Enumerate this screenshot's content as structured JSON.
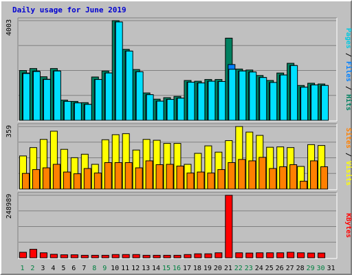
{
  "title": "Daily usage for June 2019",
  "colors": {
    "background": "#c0c0c0",
    "hits": "#008060",
    "files": "#0080ff",
    "pages": "#00e0ff",
    "visits": "#ffff00",
    "sites": "#ff8000",
    "kbytes": "#ff0000",
    "title": "#0000d0",
    "weekend_label": "#008040",
    "weekday_label": "#000000"
  },
  "chart_data": [
    {
      "type": "bar",
      "panel": "hits",
      "max_label": "4003",
      "ylim": [
        0,
        4003
      ],
      "right_label": [
        {
          "text": "Pages",
          "color": "#00c8e0"
        },
        {
          "text": " / ",
          "color": "#000000"
        },
        {
          "text": "Files",
          "color": "#0080ff"
        },
        {
          "text": " / ",
          "color": "#000000"
        },
        {
          "text": "Hits",
          "color": "#008060"
        }
      ],
      "series": [
        {
          "name": "Hits",
          "color": "#008060",
          "values": [
            2000,
            2080,
            1750,
            2080,
            810,
            760,
            710,
            1740,
            1980,
            4003,
            2850,
            2040,
            1100,
            850,
            910,
            960,
            1600,
            1570,
            1640,
            1640,
            3300,
            2060,
            2020,
            1800,
            1600,
            1900,
            2290,
            1400,
            1490,
            1460,
            0
          ]
        },
        {
          "name": "Files",
          "color": "#0080ff",
          "values": [
            1900,
            1980,
            1650,
            1990,
            760,
            700,
            640,
            1640,
            1900,
            3950,
            2780,
            1950,
            1030,
            770,
            840,
            890,
            1530,
            1500,
            1570,
            1560,
            2240,
            1980,
            1940,
            1720,
            1520,
            1820,
            2200,
            1330,
            1420,
            1400,
            0
          ]
        },
        {
          "name": "Pages",
          "color": "#00e0ff",
          "values": [
            1880,
            1960,
            1640,
            1980,
            760,
            700,
            640,
            1640,
            1900,
            3950,
            2780,
            1950,
            1030,
            770,
            840,
            890,
            1530,
            1500,
            1570,
            1560,
            2050,
            1980,
            1940,
            1720,
            1520,
            1820,
            2200,
            1330,
            1420,
            1400,
            0
          ]
        }
      ]
    },
    {
      "type": "bar",
      "panel": "visits",
      "max_label": "359",
      "ylim": [
        0,
        359
      ],
      "right_label": [
        {
          "text": "Sites",
          "color": "#ff8000"
        },
        {
          "text": " / ",
          "color": "#000000"
        },
        {
          "text": "Visits",
          "color": "#ffff00"
        }
      ],
      "series": [
        {
          "name": "Visits",
          "color": "#ffff00",
          "values": [
            190,
            238,
            285,
            332,
            228,
            180,
            200,
            142,
            283,
            312,
            318,
            224,
            285,
            280,
            262,
            262,
            142,
            205,
            248,
            212,
            278,
            359,
            327,
            308,
            240,
            242,
            238,
            130,
            255,
            250,
            0
          ]
        },
        {
          "name": "Sites",
          "color": "#ff8000",
          "values": [
            90,
            112,
            122,
            142,
            98,
            88,
            118,
            92,
            152,
            152,
            152,
            122,
            162,
            140,
            142,
            132,
            92,
            98,
            92,
            112,
            152,
            170,
            162,
            182,
            118,
            128,
            140,
            45,
            162,
            128,
            0
          ]
        }
      ]
    },
    {
      "type": "bar",
      "panel": "kbytes",
      "max_label": "248989",
      "ylim": [
        0,
        248989
      ],
      "right_label": [
        {
          "text": "KBytes",
          "color": "#ff0000"
        }
      ],
      "series": [
        {
          "name": "KBytes",
          "color": "#ff0000",
          "values": [
            22000,
            34000,
            20000,
            14000,
            12000,
            12000,
            10000,
            10000,
            10000,
            13000,
            13000,
            13000,
            10000,
            10000,
            10000,
            10000,
            13000,
            16000,
            16000,
            20000,
            248989,
            20000,
            19000,
            20000,
            20000,
            20000,
            22000,
            20000,
            19000,
            19000,
            0
          ]
        }
      ]
    }
  ],
  "x_axis": {
    "labels": [
      "1",
      "2",
      "3",
      "4",
      "5",
      "6",
      "7",
      "8",
      "9",
      "10",
      "11",
      "12",
      "13",
      "14",
      "15",
      "16",
      "17",
      "18",
      "19",
      "20",
      "21",
      "22",
      "23",
      "24",
      "25",
      "26",
      "27",
      "28",
      "29",
      "30",
      "31"
    ],
    "weekend_days": [
      1,
      2,
      8,
      9,
      15,
      16,
      22,
      23,
      29,
      30
    ]
  }
}
